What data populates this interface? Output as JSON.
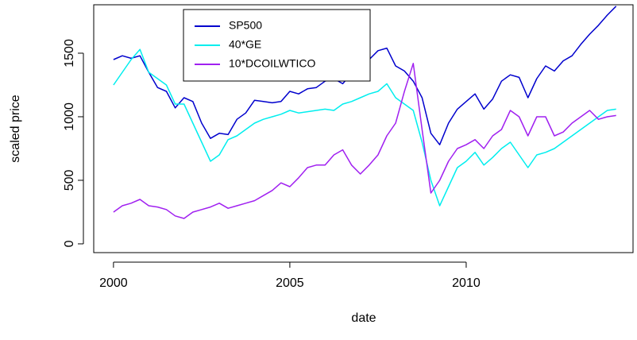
{
  "chart_data": {
    "type": "line",
    "x_label": "date",
    "y_label": "scaled price",
    "x": [
      2000,
      2000.25,
      2000.5,
      2000.75,
      2001,
      2001.25,
      2001.5,
      2001.75,
      2002,
      2002.25,
      2002.5,
      2002.75,
      2003,
      2003.25,
      2003.5,
      2003.75,
      2004,
      2004.25,
      2004.5,
      2004.75,
      2005,
      2005.25,
      2005.5,
      2005.75,
      2006,
      2006.25,
      2006.5,
      2006.75,
      2007,
      2007.25,
      2007.5,
      2007.75,
      2008,
      2008.25,
      2008.5,
      2008.75,
      2009,
      2009.25,
      2009.5,
      2009.75,
      2010,
      2010.25,
      2010.5,
      2010.75,
      2011,
      2011.25,
      2011.5,
      2011.75,
      2012,
      2012.25,
      2012.5,
      2012.75,
      2013,
      2013.25,
      2013.5,
      2013.75,
      2014,
      2014.25
    ],
    "series": [
      {
        "name": "SP500",
        "color": "#0000cd",
        "values": [
          1450,
          1480,
          1460,
          1480,
          1350,
          1230,
          1200,
          1070,
          1150,
          1120,
          950,
          830,
          870,
          860,
          980,
          1030,
          1130,
          1120,
          1110,
          1120,
          1200,
          1180,
          1220,
          1230,
          1280,
          1300,
          1260,
          1340,
          1420,
          1450,
          1520,
          1540,
          1400,
          1360,
          1280,
          1150,
          870,
          780,
          950,
          1060,
          1120,
          1180,
          1060,
          1140,
          1280,
          1330,
          1310,
          1150,
          1300,
          1400,
          1360,
          1440,
          1480,
          1570,
          1650,
          1720,
          1800,
          1870
        ]
      },
      {
        "name": "40*GE",
        "color": "#00eeee",
        "values": [
          1250,
          1350,
          1450,
          1530,
          1350,
          1300,
          1250,
          1100,
          1100,
          950,
          800,
          650,
          700,
          820,
          850,
          900,
          950,
          980,
          1000,
          1020,
          1050,
          1030,
          1040,
          1050,
          1060,
          1050,
          1100,
          1120,
          1150,
          1180,
          1200,
          1260,
          1150,
          1100,
          1050,
          800,
          500,
          300,
          450,
          600,
          650,
          720,
          620,
          680,
          750,
          800,
          700,
          600,
          700,
          720,
          750,
          800,
          850,
          900,
          950,
          1000,
          1050,
          1060
        ]
      },
      {
        "name": "10*DCOILWTICO",
        "color": "#a020f0",
        "values": [
          250,
          300,
          320,
          350,
          300,
          290,
          270,
          220,
          200,
          250,
          270,
          290,
          320,
          280,
          300,
          320,
          340,
          380,
          420,
          480,
          450,
          520,
          600,
          620,
          620,
          700,
          740,
          620,
          550,
          620,
          700,
          850,
          950,
          1200,
          1420,
          900,
          400,
          500,
          650,
          750,
          780,
          820,
          750,
          850,
          900,
          1050,
          1000,
          850,
          1000,
          1000,
          850,
          880,
          950,
          1000,
          1050,
          980,
          1000,
          1010
        ]
      }
    ],
    "xlim": [
      1999.44,
      2014.73
    ],
    "xticks": [
      2000,
      2005,
      2010
    ],
    "ylim": [
      -69,
      1881
    ],
    "yticks": [
      0,
      500,
      1000,
      1500
    ]
  }
}
